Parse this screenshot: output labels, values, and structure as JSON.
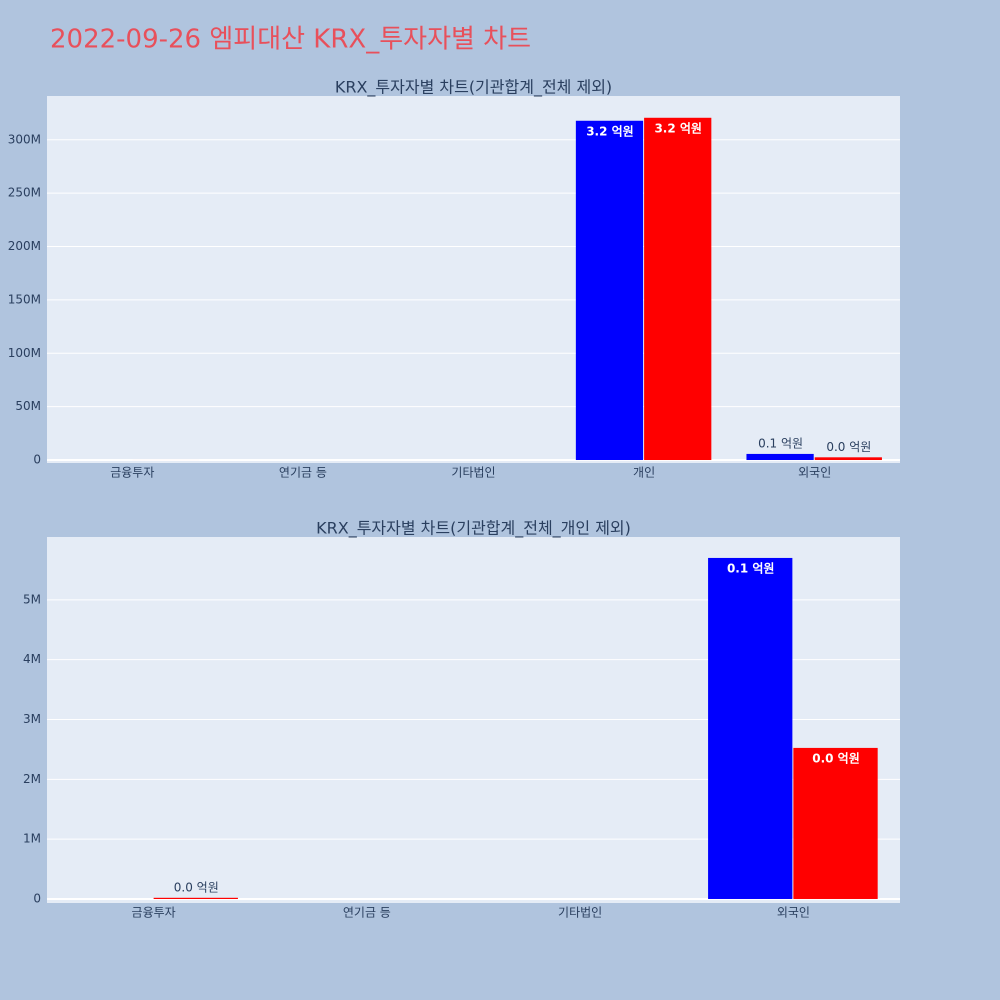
{
  "title": "2022-09-26 엠피대산 KRX_투자자별 차트",
  "chart_data": [
    {
      "type": "bar",
      "title": "KRX_투자자별 차트(기관합계_전체 제외)",
      "categories": [
        "금융투자",
        "연기금 등",
        "기타법인",
        "개인",
        "외국인"
      ],
      "series": [
        {
          "color": "#0000ff",
          "values": [
            0,
            0,
            0,
            317800000,
            5700000
          ],
          "value_labels": [
            null,
            null,
            null,
            "3.2 억원",
            "0.1 억원"
          ]
        },
        {
          "color": "#ff0000",
          "values": [
            20000,
            0,
            0,
            320600000,
            2525000
          ],
          "value_labels": [
            null,
            null,
            null,
            "3.2 억원",
            "0.0 억원"
          ]
        }
      ],
      "ylim": [
        -2800000,
        341000000
      ],
      "yticks": [
        0,
        {
          "value": 50000000,
          "label": "50M"
        },
        {
          "value": 100000000,
          "label": "100M"
        },
        {
          "value": 150000000,
          "label": "150M"
        },
        {
          "value": 200000000,
          "label": "200M"
        },
        {
          "value": 250000000,
          "label": "250M"
        },
        {
          "value": 300000000,
          "label": "300M"
        }
      ],
      "grid": true
    },
    {
      "type": "bar",
      "title": "KRX_투자자별 차트(기관합계_전체_개인 제외)",
      "categories": [
        "금융투자",
        "연기금 등",
        "기타법인",
        "외국인"
      ],
      "series": [
        {
          "color": "#0000ff",
          "values": [
            0,
            0,
            0,
            5700000
          ],
          "value_labels": [
            null,
            null,
            null,
            "0.1 억원"
          ]
        },
        {
          "color": "#ff0000",
          "values": [
            20000,
            0,
            0,
            2525000
          ],
          "value_labels": [
            "0.0 억원",
            null,
            null,
            "0.0 억원"
          ]
        }
      ],
      "ylim": [
        -67000,
        6050000
      ],
      "yticks": [
        0,
        {
          "value": 1000000,
          "label": "1M"
        },
        {
          "value": 2000000,
          "label": "2M"
        },
        {
          "value": 3000000,
          "label": "3M"
        },
        {
          "value": 4000000,
          "label": "4M"
        },
        {
          "value": 5000000,
          "label": "5M"
        }
      ],
      "grid": true
    }
  ]
}
